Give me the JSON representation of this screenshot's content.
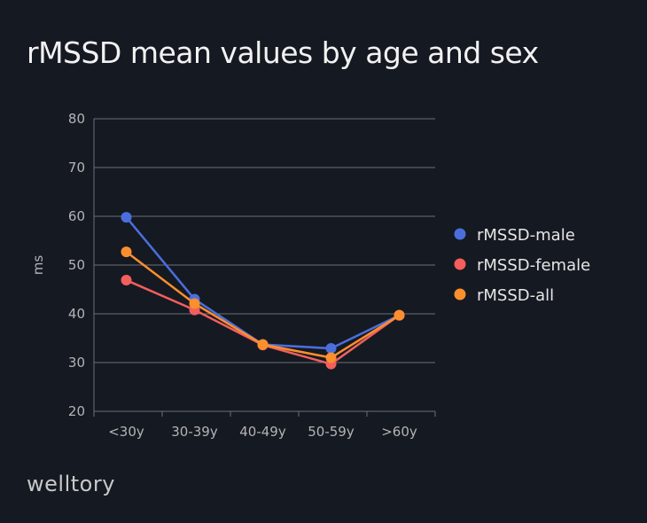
{
  "chart_data": {
    "type": "line",
    "title": "rMSSD mean values by age and sex",
    "xlabel": "",
    "ylabel": "ms",
    "ylim": [
      20,
      80
    ],
    "yticks": [
      20,
      30,
      40,
      50,
      60,
      70,
      80
    ],
    "categories": [
      "<30y",
      "30-39y",
      "40-49y",
      "50-59y",
      ">60y"
    ],
    "grid": true,
    "legend_position": "right",
    "series": [
      {
        "name": "rMSSD-male",
        "color": "#4a6fdc",
        "values": [
          59.8,
          43.0,
          33.7,
          32.9,
          39.7
        ]
      },
      {
        "name": "rMSSD-female",
        "color": "#f25f5c",
        "values": [
          46.9,
          40.8,
          33.6,
          29.7,
          39.7
        ]
      },
      {
        "name": "rMSSD-all",
        "color": "#fb8f2e",
        "values": [
          52.7,
          42.1,
          33.7,
          31.0,
          39.7
        ]
      }
    ]
  },
  "brand": {
    "logo_text": "welltory"
  }
}
